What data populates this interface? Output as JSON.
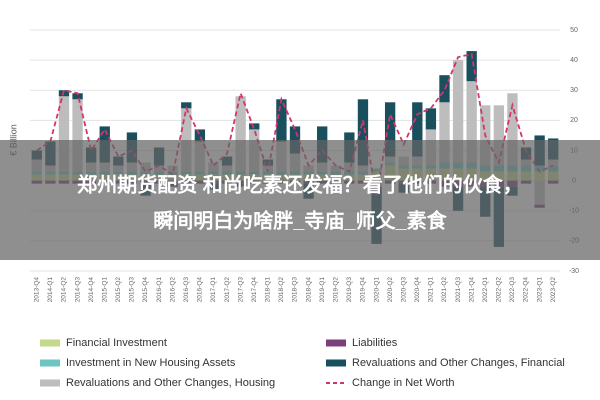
{
  "chart_data": {
    "type": "bar",
    "y_label": "€ Billion",
    "categories": [
      "2013-Q4",
      "2014-Q1",
      "2014-Q2",
      "2014-Q3",
      "2014-Q4",
      "2015-Q1",
      "2015-Q2",
      "2015-Q3",
      "2015-Q4",
      "2016-Q1",
      "2016-Q2",
      "2016-Q3",
      "2016-Q4",
      "2017-Q1",
      "2017-Q2",
      "2017-Q3",
      "2017-Q4",
      "2018-Q1",
      "2018-Q2",
      "2018-Q3",
      "2018-Q4",
      "2019-Q1",
      "2019-Q2",
      "2019-Q3",
      "2019-Q4",
      "2020-Q1",
      "2020-Q2",
      "2020-Q3",
      "2020-Q4",
      "2021-Q1",
      "2021-Q2",
      "2021-Q3",
      "2021-Q4",
      "2022-Q1",
      "2022-Q2",
      "2022-Q3",
      "2022-Q4",
      "2023-Q1",
      "2023-Q2"
    ],
    "series": [
      {
        "name": "Financial Investment",
        "color": "#c5d98a",
        "values": [
          2,
          2,
          2,
          2,
          2,
          2,
          2,
          2,
          2,
          2,
          2,
          2,
          2,
          2,
          2,
          2,
          2,
          2,
          2,
          2,
          2,
          2,
          2,
          2,
          2,
          3,
          5,
          4,
          4,
          4,
          4,
          4,
          4,
          3,
          3,
          3,
          3,
          3,
          3
        ]
      },
      {
        "name": "Investment in New Housing Assets",
        "color": "#6ec4c0",
        "values": [
          1,
          1,
          1,
          1,
          1,
          1,
          1,
          1,
          1,
          1,
          1,
          1,
          1,
          1,
          1,
          1,
          1,
          1,
          1,
          1,
          1,
          1,
          1,
          1,
          1,
          1,
          1,
          1,
          1,
          1,
          2,
          2,
          2,
          2,
          2,
          2,
          2,
          2,
          2
        ]
      },
      {
        "name": "Revaluations and Other Changes, Housing",
        "color": "#bdbdbd",
        "values": [
          4,
          2,
          25,
          24,
          3,
          3,
          2,
          3,
          3,
          2,
          2,
          21,
          10,
          3,
          2,
          25,
          14,
          2,
          10,
          6,
          2,
          3,
          2,
          3,
          2,
          -2,
          2,
          3,
          3,
          12,
          20,
          34,
          27,
          20,
          20,
          24,
          2,
          -8,
          2
        ]
      },
      {
        "name": "Liabilities",
        "color": "#7b3f7b",
        "values": [
          -1,
          -1,
          -1,
          -1,
          -1,
          -1,
          -1,
          -1,
          -1,
          -1,
          -1,
          -1,
          -1,
          -1,
          -1,
          -1,
          -1,
          -1,
          -1,
          -1,
          -1,
          -1,
          -1,
          -1,
          -1,
          -1,
          -1,
          -1,
          -1,
          -1,
          -2,
          -2,
          -2,
          -2,
          -2,
          -2,
          -1,
          -1,
          -1
        ]
      },
      {
        "name": "Revaluations and Other Changes, Financial",
        "color": "#1a4f5e",
        "values": [
          3,
          8,
          2,
          2,
          5,
          12,
          3,
          10,
          -4,
          6,
          -1,
          2,
          4,
          -2,
          3,
          -1,
          2,
          2,
          14,
          9,
          -5,
          12,
          -1,
          10,
          22,
          -18,
          18,
          -3,
          18,
          7,
          9,
          -8,
          10,
          -10,
          -20,
          -3,
          4,
          10,
          7
        ]
      },
      {
        "name": "Change in Net Worth",
        "color": "#d6336c",
        "type": "line",
        "values": [
          10,
          13,
          30,
          29,
          10,
          17,
          8,
          10,
          3,
          5,
          2,
          24,
          15,
          5,
          9,
          29,
          17,
          3,
          27,
          17,
          5,
          10,
          5,
          3,
          20,
          -5,
          22,
          12,
          22,
          24,
          30,
          41,
          42,
          15,
          6,
          25,
          10,
          3,
          5
        ]
      }
    ],
    "ylim": [
      -30,
      50
    ],
    "yticks": [
      -30,
      -20,
      -10,
      0,
      10,
      20,
      30,
      40,
      50
    ],
    "grid": true
  },
  "overlay": {
    "lines": [
      "郑州期货配资 和尚吃素还发福？看了他们的伙食，",
      "瞬间明白为啥胖_寺庙_师父_素食"
    ]
  }
}
